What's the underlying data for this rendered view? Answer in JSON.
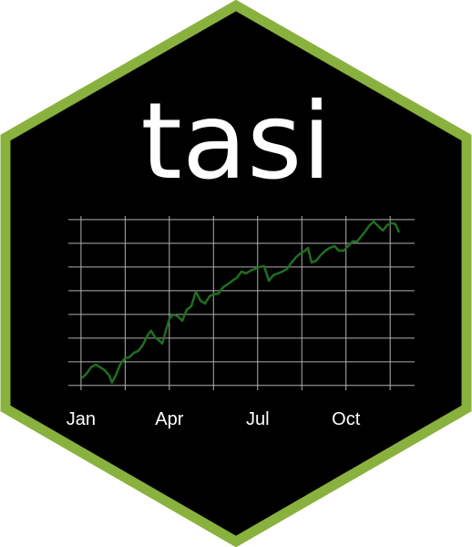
{
  "title": "tasi",
  "chart_data": {
    "type": "line",
    "x": [
      0.03,
      0.19,
      0.34,
      0.5,
      0.65,
      0.8,
      0.96,
      1.05,
      1.18,
      1.33,
      1.49,
      1.64,
      1.8,
      1.95,
      2.11,
      2.26,
      2.38,
      2.51,
      2.63,
      2.76,
      2.88,
      3.0,
      3.13,
      3.28,
      3.44,
      3.59,
      3.75,
      3.9,
      4.06,
      4.21,
      4.37,
      4.52,
      4.67,
      4.83,
      4.98,
      5.14,
      5.29,
      5.45,
      5.6,
      5.76,
      5.91,
      6.07,
      6.22,
      6.38,
      6.53,
      6.69,
      6.84,
      7.0,
      7.15,
      7.31,
      7.46,
      7.62,
      7.71,
      7.83,
      7.99,
      8.14,
      8.3,
      8.45,
      8.61,
      8.76,
      8.92,
      9.07,
      9.23,
      9.38,
      9.5,
      9.63,
      9.78,
      9.94,
      10.09,
      10.25,
      10.4,
      10.56,
      10.68,
      10.8
    ],
    "series": [
      {
        "color": "#1f6f1f",
        "values": [
          0.31,
          0.5,
          0.77,
          0.88,
          0.77,
          0.65,
          0.42,
          0.12,
          0.42,
          0.88,
          1.15,
          1.19,
          1.38,
          1.46,
          1.73,
          2.12,
          2.31,
          2.04,
          1.92,
          1.77,
          2.31,
          2.81,
          3.0,
          2.92,
          2.73,
          3.19,
          3.35,
          3.96,
          3.58,
          3.46,
          3.77,
          3.85,
          3.88,
          4.15,
          4.27,
          4.42,
          4.54,
          4.81,
          4.73,
          4.85,
          4.92,
          5.0,
          5.04,
          4.42,
          4.65,
          4.73,
          4.81,
          4.92,
          5.19,
          5.42,
          5.58,
          5.69,
          5.81,
          5.19,
          5.27,
          5.5,
          5.69,
          5.81,
          5.88,
          5.69,
          5.69,
          5.88,
          6.08,
          6.08,
          6.27,
          6.46,
          6.73,
          6.92,
          6.73,
          6.54,
          6.77,
          6.85,
          6.81,
          6.46
        ]
      }
    ],
    "xlim": [
      -0.43,
      11.33
    ],
    "xticks": [
      {
        "value": 0,
        "label": "Jan"
      },
      {
        "value": 3,
        "label": "Apr"
      },
      {
        "value": 6,
        "label": "Jul"
      },
      {
        "value": 9,
        "label": "Oct"
      }
    ],
    "xminor": [
      1.5,
      4.5,
      7.5,
      10.5
    ],
    "ylim": [
      -0.2,
      7.15
    ],
    "yticks": [
      0,
      1,
      2,
      3,
      4,
      5,
      6,
      7
    ],
    "grid": true
  }
}
